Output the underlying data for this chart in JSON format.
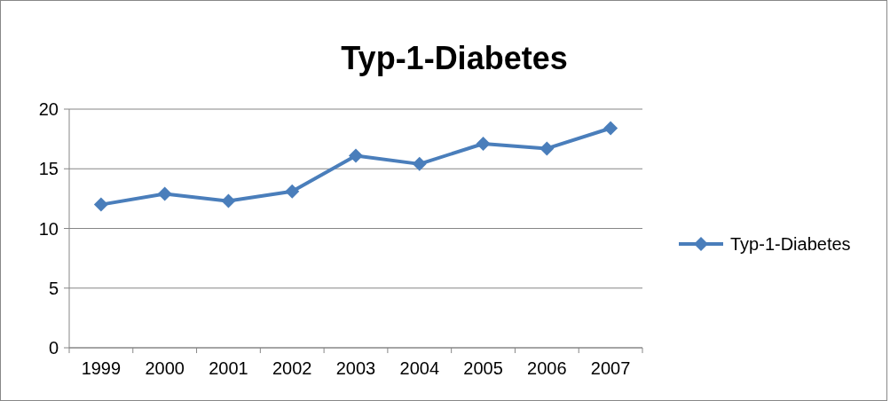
{
  "chart_data": {
    "type": "line",
    "title": "Typ-1-Diabetes",
    "categories": [
      "1999",
      "2000",
      "2001",
      "2002",
      "2003",
      "2004",
      "2005",
      "2006",
      "2007"
    ],
    "series": [
      {
        "name": "Typ-1-Diabetes",
        "color": "#4a7ebb",
        "values": [
          12.0,
          12.9,
          12.3,
          13.1,
          16.1,
          15.4,
          17.1,
          16.7,
          18.4
        ]
      }
    ],
    "ylim": [
      0,
      20
    ],
    "yticks": [
      0,
      5,
      10,
      15,
      20
    ],
    "grid": "y",
    "legend": "right",
    "marker": "diamond",
    "line_style": "solid"
  }
}
